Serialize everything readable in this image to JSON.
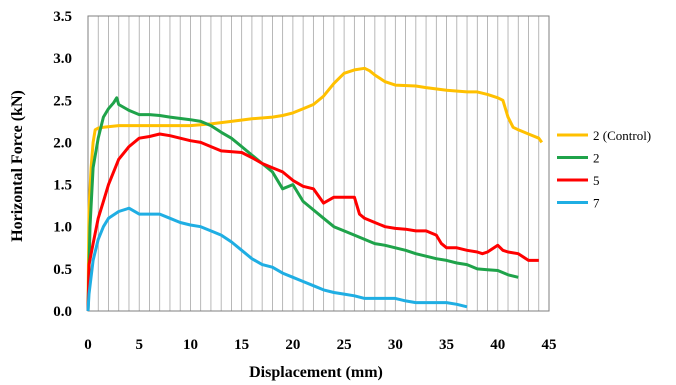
{
  "chart_data": {
    "type": "line",
    "xlabel": "Displacement (mm)",
    "ylabel": "Horizontal Force (kN)",
    "xlim": [
      0,
      45
    ],
    "ylim": [
      0,
      3.5
    ],
    "xticks": [
      0,
      5,
      10,
      15,
      20,
      25,
      30,
      35,
      40,
      45
    ],
    "yticks": [
      0.0,
      0.5,
      1.0,
      1.5,
      2.0,
      2.5,
      3.0,
      3.5
    ],
    "xtick_labels": [
      "0",
      "5",
      "10",
      "15",
      "20",
      "25",
      "30",
      "35",
      "40",
      "45"
    ],
    "ytick_labels": [
      "0.0",
      "0.5",
      "1.0",
      "1.5",
      "2.0",
      "2.5",
      "3.0",
      "3.5"
    ],
    "x_grid_step": 1,
    "grid": "vertical",
    "legend_position": "right",
    "series": [
      {
        "name": "2 (Control)",
        "color": "#FFC000",
        "points": [
          [
            0,
            0
          ],
          [
            0.1,
            1.2
          ],
          [
            0.3,
            1.7
          ],
          [
            0.5,
            2.0
          ],
          [
            0.7,
            2.15
          ],
          [
            1,
            2.17
          ],
          [
            1.5,
            2.18
          ],
          [
            3,
            2.2
          ],
          [
            5,
            2.2
          ],
          [
            8,
            2.2
          ],
          [
            10,
            2.2
          ],
          [
            12,
            2.22
          ],
          [
            14,
            2.25
          ],
          [
            16,
            2.28
          ],
          [
            18,
            2.3
          ],
          [
            19,
            2.32
          ],
          [
            20,
            2.35
          ],
          [
            21,
            2.4
          ],
          [
            22,
            2.45
          ],
          [
            23,
            2.55
          ],
          [
            24,
            2.7
          ],
          [
            25,
            2.82
          ],
          [
            26,
            2.86
          ],
          [
            27,
            2.88
          ],
          [
            27.5,
            2.85
          ],
          [
            28,
            2.8
          ],
          [
            29,
            2.72
          ],
          [
            30,
            2.68
          ],
          [
            32,
            2.67
          ],
          [
            33,
            2.65
          ],
          [
            35,
            2.62
          ],
          [
            37,
            2.6
          ],
          [
            38,
            2.6
          ],
          [
            39,
            2.57
          ],
          [
            40,
            2.53
          ],
          [
            40.5,
            2.5
          ],
          [
            41,
            2.3
          ],
          [
            41.5,
            2.18
          ],
          [
            42,
            2.15
          ],
          [
            43,
            2.1
          ],
          [
            44,
            2.05
          ],
          [
            44.3,
            2.0
          ]
        ]
      },
      {
        "name": "2",
        "color": "#1FA34A",
        "points": [
          [
            0,
            0
          ],
          [
            0.2,
            1.0
          ],
          [
            0.5,
            1.7
          ],
          [
            1,
            2.05
          ],
          [
            1.5,
            2.3
          ],
          [
            2,
            2.4
          ],
          [
            2.5,
            2.47
          ],
          [
            2.8,
            2.53
          ],
          [
            3,
            2.45
          ],
          [
            4,
            2.38
          ],
          [
            5,
            2.33
          ],
          [
            6,
            2.33
          ],
          [
            7,
            2.32
          ],
          [
            8,
            2.3
          ],
          [
            10,
            2.27
          ],
          [
            11,
            2.25
          ],
          [
            12,
            2.2
          ],
          [
            13,
            2.12
          ],
          [
            14,
            2.05
          ],
          [
            15,
            1.95
          ],
          [
            16,
            1.85
          ],
          [
            17,
            1.75
          ],
          [
            18,
            1.65
          ],
          [
            19,
            1.45
          ],
          [
            20,
            1.5
          ],
          [
            21,
            1.3
          ],
          [
            22,
            1.2
          ],
          [
            23,
            1.1
          ],
          [
            24,
            1.0
          ],
          [
            25,
            0.95
          ],
          [
            26,
            0.9
          ],
          [
            27,
            0.85
          ],
          [
            28,
            0.8
          ],
          [
            29,
            0.78
          ],
          [
            30,
            0.75
          ],
          [
            31,
            0.72
          ],
          [
            32,
            0.68
          ],
          [
            33,
            0.65
          ],
          [
            34,
            0.62
          ],
          [
            35,
            0.6
          ],
          [
            36,
            0.57
          ],
          [
            37,
            0.55
          ],
          [
            38,
            0.5
          ],
          [
            39,
            0.49
          ],
          [
            40,
            0.48
          ],
          [
            41,
            0.43
          ],
          [
            42,
            0.4
          ]
        ]
      },
      {
        "name": "5",
        "color": "#FF0000",
        "points": [
          [
            0,
            0
          ],
          [
            0.1,
            0.55
          ],
          [
            0.5,
            0.8
          ],
          [
            1,
            1.1
          ],
          [
            1.5,
            1.3
          ],
          [
            2,
            1.5
          ],
          [
            2.5,
            1.65
          ],
          [
            3,
            1.8
          ],
          [
            4,
            1.95
          ],
          [
            5,
            2.05
          ],
          [
            6,
            2.07
          ],
          [
            7,
            2.1
          ],
          [
            8,
            2.08
          ],
          [
            10,
            2.02
          ],
          [
            11,
            2.0
          ],
          [
            12,
            1.95
          ],
          [
            13,
            1.9
          ],
          [
            15,
            1.88
          ],
          [
            16,
            1.82
          ],
          [
            17,
            1.75
          ],
          [
            18,
            1.7
          ],
          [
            19,
            1.65
          ],
          [
            20,
            1.55
          ],
          [
            21,
            1.48
          ],
          [
            22,
            1.45
          ],
          [
            23,
            1.28
          ],
          [
            24,
            1.35
          ],
          [
            25,
            1.35
          ],
          [
            26,
            1.35
          ],
          [
            26.5,
            1.15
          ],
          [
            27,
            1.1
          ],
          [
            28,
            1.05
          ],
          [
            29,
            1.0
          ],
          [
            30,
            0.98
          ],
          [
            31,
            0.97
          ],
          [
            32,
            0.95
          ],
          [
            33,
            0.95
          ],
          [
            34,
            0.9
          ],
          [
            34.5,
            0.8
          ],
          [
            35,
            0.75
          ],
          [
            36,
            0.75
          ],
          [
            37,
            0.72
          ],
          [
            38,
            0.7
          ],
          [
            38.5,
            0.68
          ],
          [
            39,
            0.7
          ],
          [
            40,
            0.78
          ],
          [
            40.5,
            0.72
          ],
          [
            41,
            0.7
          ],
          [
            42,
            0.68
          ],
          [
            43,
            0.6
          ],
          [
            44,
            0.6
          ]
        ]
      },
      {
        "name": "7",
        "color": "#1FAEE3",
        "points": [
          [
            0,
            0
          ],
          [
            0.1,
            0.2
          ],
          [
            0.5,
            0.6
          ],
          [
            1,
            0.85
          ],
          [
            1.5,
            1.0
          ],
          [
            2,
            1.1
          ],
          [
            3,
            1.18
          ],
          [
            4,
            1.22
          ],
          [
            5,
            1.15
          ],
          [
            6,
            1.15
          ],
          [
            7,
            1.15
          ],
          [
            8,
            1.1
          ],
          [
            9,
            1.05
          ],
          [
            10,
            1.02
          ],
          [
            11,
            1.0
          ],
          [
            12,
            0.95
          ],
          [
            13,
            0.9
          ],
          [
            14,
            0.82
          ],
          [
            15,
            0.72
          ],
          [
            16,
            0.62
          ],
          [
            17,
            0.55
          ],
          [
            18,
            0.52
          ],
          [
            19,
            0.45
          ],
          [
            20,
            0.4
          ],
          [
            21,
            0.35
          ],
          [
            22,
            0.3
          ],
          [
            23,
            0.25
          ],
          [
            24,
            0.22
          ],
          [
            25,
            0.2
          ],
          [
            26,
            0.18
          ],
          [
            27,
            0.15
          ],
          [
            30,
            0.15
          ],
          [
            31,
            0.12
          ],
          [
            32,
            0.1
          ],
          [
            35,
            0.1
          ],
          [
            36,
            0.08
          ],
          [
            37,
            0.05
          ]
        ]
      }
    ]
  }
}
